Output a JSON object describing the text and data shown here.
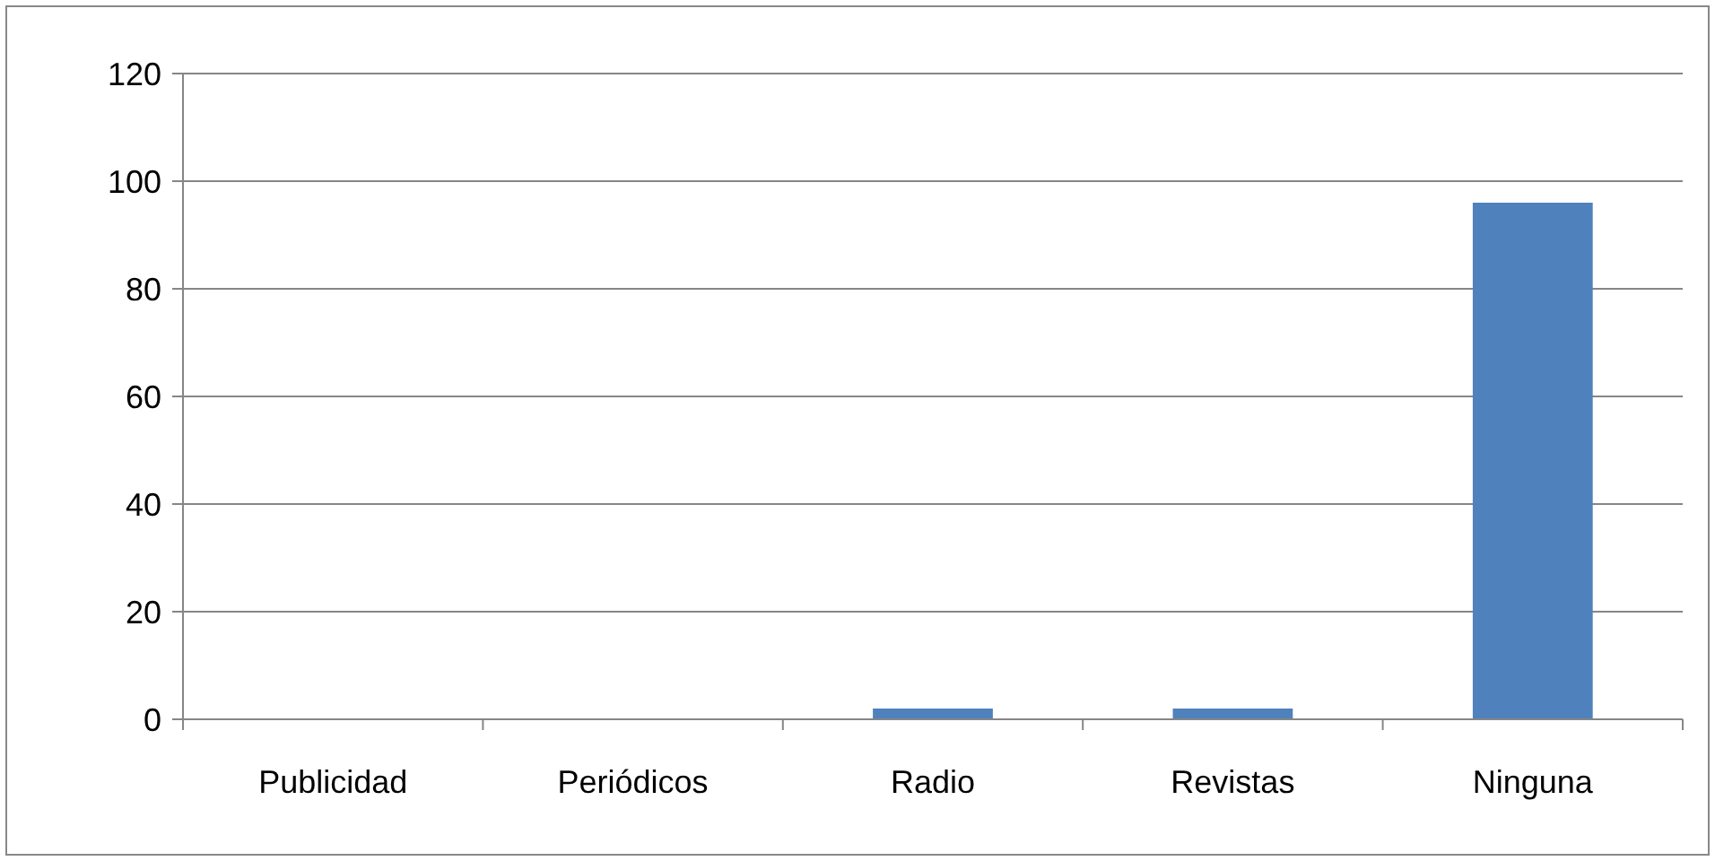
{
  "chart_data": {
    "type": "bar",
    "categories": [
      "Publicidad",
      "Periódicos",
      "Radio",
      "Revistas",
      "Ninguna"
    ],
    "values": [
      0,
      0,
      2,
      2,
      96
    ],
    "color": "#4f81bd",
    "ylim": [
      0,
      120
    ],
    "yticks": [
      0,
      20,
      40,
      60,
      80,
      100,
      120
    ],
    "grid": "y"
  }
}
